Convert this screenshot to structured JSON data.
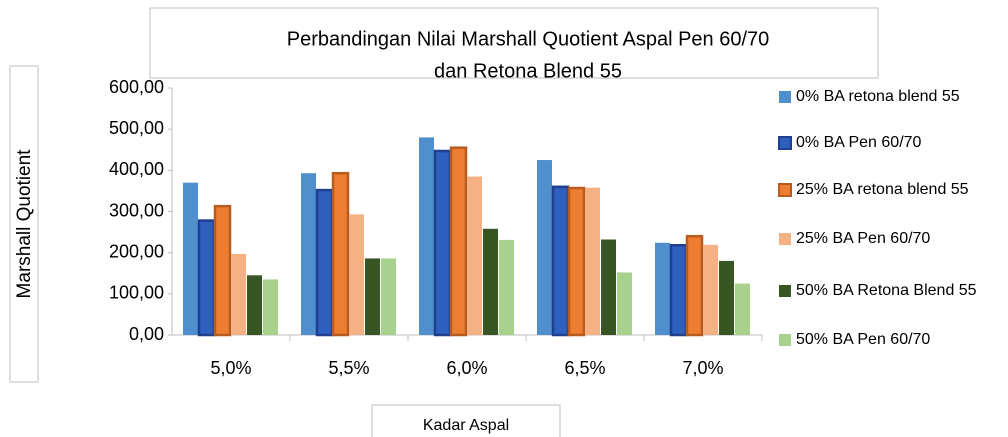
{
  "chart_data": {
    "type": "bar",
    "title": "Perbandingan Nilai Marshall Quotient  Aspal Pen 60/70",
    "subtitle": "dan Retona Blend 55",
    "y_label": "Marshall Quotient",
    "x_label": "Kadar Aspal",
    "categories": [
      "5,0%",
      "5,5%",
      "6,0%",
      "6,5%",
      "7,0%"
    ],
    "series": [
      {
        "name": "0% BA retona blend 55",
        "color": "#4f8fcd",
        "values": [
          370,
          393,
          480,
          425,
          224
        ]
      },
      {
        "name": "0% BA Pen 60/70",
        "color": "#2f5fbf",
        "values": [
          278,
          352,
          447,
          360,
          218
        ]
      },
      {
        "name": "25% BA retona blend 55",
        "color": "#ed7d31",
        "values": [
          313,
          393,
          455,
          357,
          240
        ]
      },
      {
        "name": "25% BA Pen 60/70",
        "color": "#f4b183",
        "values": [
          197,
          293,
          385,
          358,
          219
        ]
      },
      {
        "name": "50% BA Retona Blend 55",
        "color": "#375623",
        "values": [
          145,
          186,
          258,
          232,
          180
        ]
      },
      {
        "name": "50% BA Pen 60/70",
        "color": "#a9d18e",
        "values": [
          135,
          186,
          231,
          152,
          125
        ]
      }
    ],
    "ylim": [
      0,
      600
    ],
    "yticks": [
      {
        "value": 0,
        "label": "0,00"
      },
      {
        "value": 100,
        "label": "100,00"
      },
      {
        "value": 200,
        "label": "200,00"
      },
      {
        "value": 300,
        "label": "300,00"
      },
      {
        "value": 400,
        "label": "400,00"
      },
      {
        "value": 500,
        "label": "500,00"
      },
      {
        "value": 600,
        "label": "600,00"
      }
    ],
    "grid": false
  }
}
